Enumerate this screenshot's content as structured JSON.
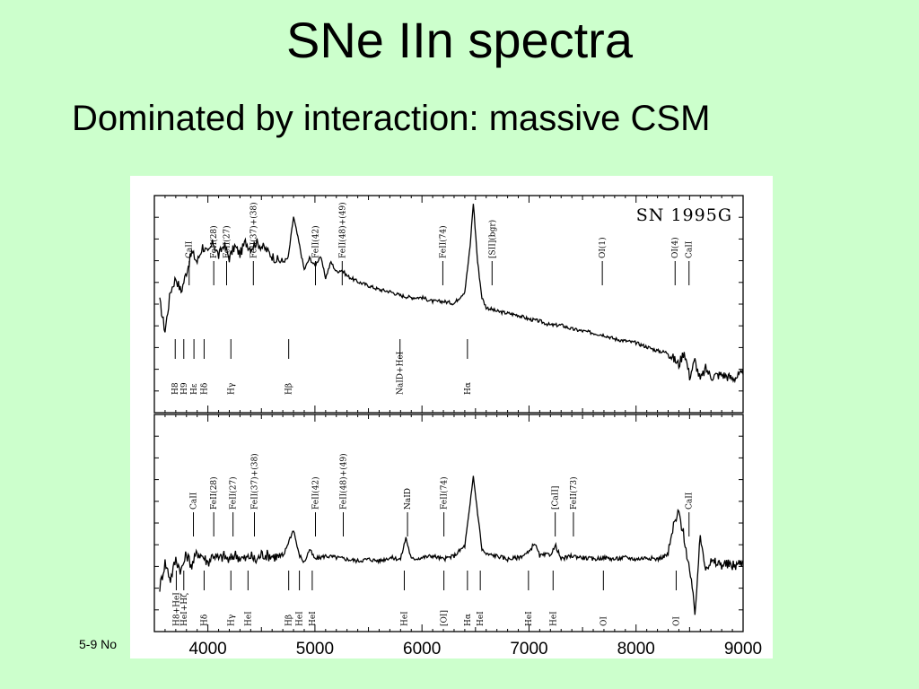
{
  "slide": {
    "title": "SNe IIn spectra",
    "subtitle": "Dominated by interaction: massive CSM",
    "footer": "5-9 No"
  },
  "chart_data": [
    {
      "type": "line",
      "title": "SN 1995G",
      "xlabel": "",
      "ylabel": "",
      "xlim": [
        3500,
        9000
      ],
      "x_ticks": [
        4000,
        5000,
        6000,
        7000,
        8000,
        9000
      ],
      "grid": false,
      "series": [
        {
          "x": [
            3550,
            3600,
            3650,
            3700,
            3750,
            3800,
            3850,
            3900,
            3950,
            4000,
            4050,
            4100,
            4150,
            4200,
            4250,
            4300,
            4350,
            4400,
            4450,
            4500,
            4550,
            4600,
            4650,
            4700,
            4750,
            4800,
            4850,
            4900,
            4950,
            5000,
            5050,
            5100,
            5150,
            5200,
            5250,
            5300,
            5400,
            5500,
            5600,
            5700,
            5800,
            5900,
            6000,
            6100,
            6200,
            6300,
            6400,
            6450,
            6480,
            6520,
            6560,
            6600,
            6700,
            6800,
            6900,
            7000,
            7100,
            7200,
            7300,
            7400,
            7500,
            7600,
            7700,
            7800,
            7900,
            8000,
            8100,
            8200,
            8300,
            8400,
            8450,
            8500,
            8550,
            8600,
            8650,
            8700,
            8800,
            8900,
            9000
          ],
          "y": [
            0.5,
            0.35,
            0.55,
            0.62,
            0.55,
            0.65,
            0.75,
            0.7,
            0.78,
            0.74,
            0.8,
            0.73,
            0.79,
            0.72,
            0.78,
            0.74,
            0.8,
            0.77,
            0.8,
            0.78,
            0.76,
            0.73,
            0.71,
            0.7,
            0.72,
            0.93,
            0.8,
            0.66,
            0.72,
            0.68,
            0.73,
            0.62,
            0.7,
            0.65,
            0.66,
            0.63,
            0.6,
            0.58,
            0.56,
            0.55,
            0.53,
            0.52,
            0.52,
            0.5,
            0.5,
            0.49,
            0.55,
            0.78,
            1.0,
            0.7,
            0.52,
            0.47,
            0.45,
            0.44,
            0.43,
            0.41,
            0.4,
            0.38,
            0.38,
            0.36,
            0.35,
            0.34,
            0.33,
            0.31,
            0.3,
            0.29,
            0.27,
            0.25,
            0.24,
            0.18,
            0.25,
            0.12,
            0.2,
            0.1,
            0.16,
            0.12,
            0.13,
            0.11,
            0.13
          ]
        }
      ],
      "line_ids": [
        {
          "label": "CaII",
          "x": 3850
        },
        {
          "label": "FeII(28)",
          "x": 4080
        },
        {
          "label": "FeII(27)",
          "x": 4200
        },
        {
          "label": "FeII(37)+(38)",
          "x": 4450
        },
        {
          "label": "FeII(42)",
          "x": 5030
        },
        {
          "label": "FeII(48)+(49)",
          "x": 5280
        },
        {
          "label": "FeII(74)",
          "x": 6220
        },
        {
          "label": "[SII](bgr)",
          "x": 6680
        },
        {
          "label": "OI(1)",
          "x": 7710
        },
        {
          "label": "OI(4)",
          "x": 8390
        },
        {
          "label": "CaII",
          "x": 8520
        },
        {
          "label": "H8",
          "x": 3720
        },
        {
          "label": "H9",
          "x": 3800
        },
        {
          "label": "Hε",
          "x": 3895
        },
        {
          "label": "Hδ",
          "x": 3990
        },
        {
          "label": "Hγ",
          "x": 4240
        },
        {
          "label": "Hβ",
          "x": 4780
        },
        {
          "label": "NaID+HeI",
          "x": 5820
        },
        {
          "label": "Hα",
          "x": 6450
        }
      ]
    },
    {
      "type": "line",
      "title": "",
      "xlabel": "",
      "ylabel": "",
      "xlim": [
        3500,
        9000
      ],
      "x_ticks": [
        4000,
        5000,
        6000,
        7000,
        8000,
        9000
      ],
      "grid": false,
      "series": [
        {
          "x": [
            3550,
            3600,
            3650,
            3700,
            3750,
            3800,
            3850,
            3900,
            3950,
            4000,
            4050,
            4100,
            4150,
            4200,
            4250,
            4300,
            4350,
            4400,
            4450,
            4500,
            4600,
            4700,
            4750,
            4800,
            4850,
            4900,
            4950,
            5000,
            5100,
            5200,
            5300,
            5400,
            5500,
            5600,
            5700,
            5800,
            5850,
            5900,
            6000,
            6100,
            6200,
            6300,
            6400,
            6450,
            6480,
            6520,
            6560,
            6600,
            6700,
            6800,
            6900,
            7000,
            7050,
            7100,
            7200,
            7250,
            7300,
            7400,
            7500,
            7600,
            7700,
            7800,
            7900,
            8000,
            8100,
            8200,
            8300,
            8350,
            8400,
            8450,
            8500,
            8550,
            8600,
            8650,
            8700,
            8800,
            8900,
            9000
          ],
          "y": [
            0.25,
            0.4,
            0.3,
            0.42,
            0.35,
            0.45,
            0.38,
            0.46,
            0.44,
            0.4,
            0.45,
            0.42,
            0.44,
            0.41,
            0.45,
            0.43,
            0.42,
            0.44,
            0.41,
            0.45,
            0.44,
            0.43,
            0.52,
            0.6,
            0.45,
            0.4,
            0.48,
            0.42,
            0.44,
            0.43,
            0.42,
            0.41,
            0.42,
            0.41,
            0.43,
            0.42,
            0.55,
            0.42,
            0.43,
            0.44,
            0.42,
            0.44,
            0.5,
            0.75,
            0.92,
            0.7,
            0.48,
            0.45,
            0.44,
            0.42,
            0.43,
            0.46,
            0.52,
            0.44,
            0.45,
            0.5,
            0.42,
            0.44,
            0.43,
            0.42,
            0.43,
            0.42,
            0.43,
            0.42,
            0.43,
            0.42,
            0.45,
            0.62,
            0.7,
            0.55,
            0.35,
            0.1,
            0.55,
            0.38,
            0.4,
            0.39,
            0.38,
            0.4
          ]
        }
      ],
      "line_ids": [
        {
          "label": "CaII",
          "x": 3890
        },
        {
          "label": "FeII(28)",
          "x": 4080
        },
        {
          "label": "FeII(27)",
          "x": 4260
        },
        {
          "label": "FeII(37)+(38)",
          "x": 4460
        },
        {
          "label": "FeII(42)",
          "x": 5030
        },
        {
          "label": "FeII(48)+(49)",
          "x": 5290
        },
        {
          "label": "NaID",
          "x": 5890
        },
        {
          "label": "FeII(74)",
          "x": 6230
        },
        {
          "label": "[CaII]",
          "x": 7270
        },
        {
          "label": "FeII(73)",
          "x": 7440
        },
        {
          "label": "CaII",
          "x": 8520
        },
        {
          "label": "H8+HeI",
          "x": 3730
        },
        {
          "label": "HeI+Hζ",
          "x": 3800
        },
        {
          "label": "Hδ",
          "x": 3990
        },
        {
          "label": "Hγ",
          "x": 4240
        },
        {
          "label": "HeI",
          "x": 4400
        },
        {
          "label": "Hβ",
          "x": 4780
        },
        {
          "label": "HeI",
          "x": 4880
        },
        {
          "label": "HeI",
          "x": 5000
        },
        {
          "label": "HeI",
          "x": 5860
        },
        {
          "label": "[OI]",
          "x": 6230
        },
        {
          "label": "Hα",
          "x": 6450
        },
        {
          "label": "HeI",
          "x": 6570
        },
        {
          "label": "HeI",
          "x": 7020
        },
        {
          "label": "HeI",
          "x": 7250
        },
        {
          "label": "OI",
          "x": 7720
        },
        {
          "label": "OI",
          "x": 8400
        }
      ]
    }
  ]
}
